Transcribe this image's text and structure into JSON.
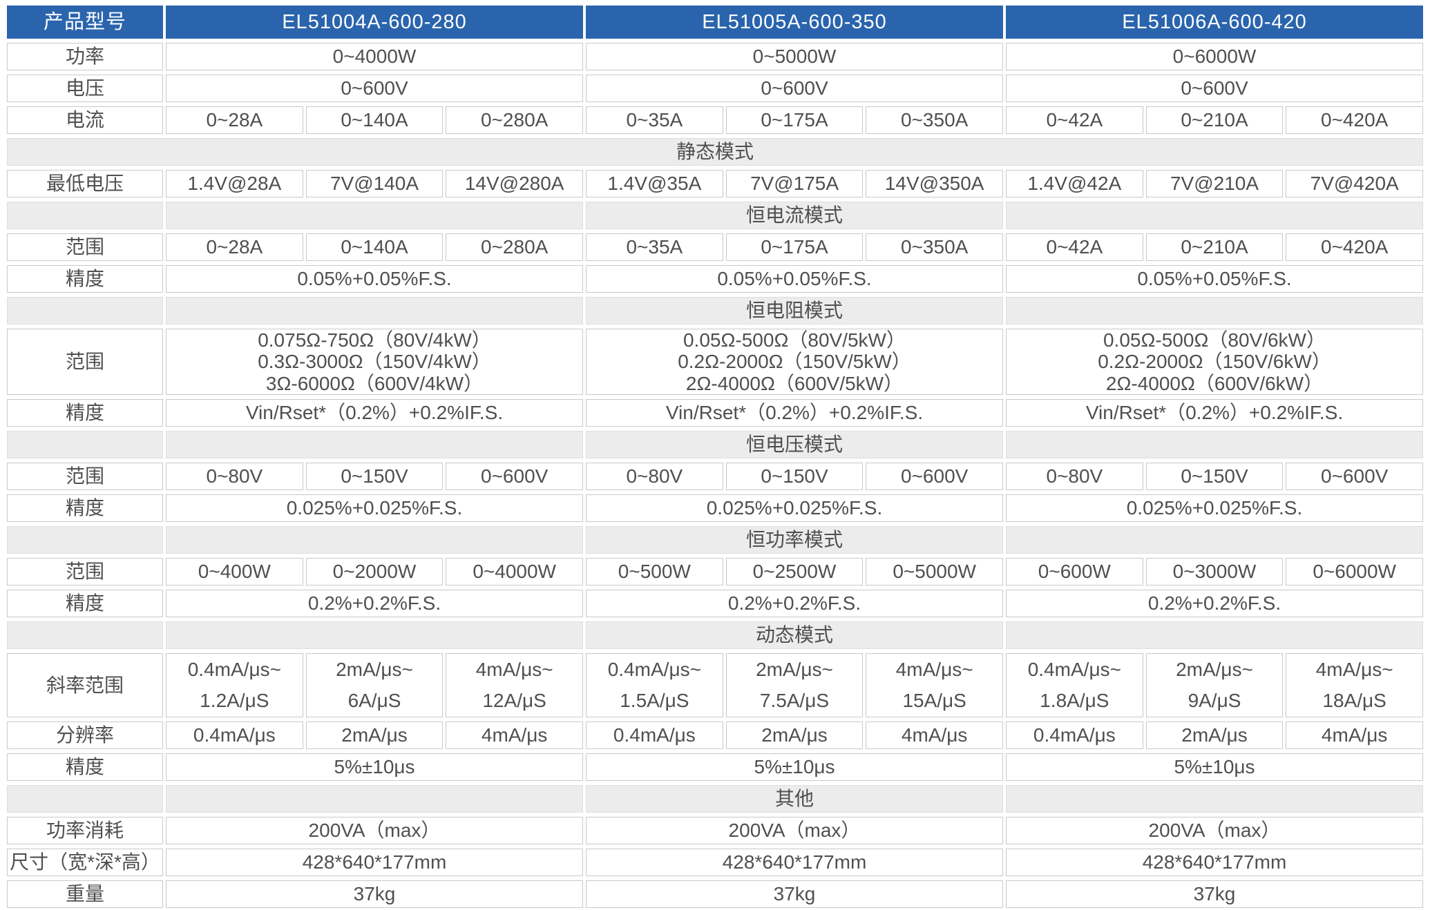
{
  "table": {
    "colors": {
      "header_bg": "#2a64ad",
      "header_text": "#ffffff",
      "band_bg": "#ececec",
      "border": "#c9c9c9",
      "text": "#4f4f52"
    },
    "header": {
      "label": "产品型号",
      "models": [
        "EL51004A-600-280",
        "EL51005A-600-350",
        "EL51006A-600-420"
      ]
    },
    "rows": [
      {
        "type": "group3",
        "label": "功率",
        "values": [
          "0~4000W",
          "0~5000W",
          "0~6000W"
        ]
      },
      {
        "type": "group3",
        "label": "电压",
        "values": [
          "0~600V",
          "0~600V",
          "0~600V"
        ]
      },
      {
        "type": "sub9",
        "label": "电流",
        "values": [
          [
            "0~28A",
            "0~140A",
            "0~280A"
          ],
          [
            "0~35A",
            "0~175A",
            "0~350A"
          ],
          [
            "0~42A",
            "0~210A",
            "0~420A"
          ]
        ]
      },
      {
        "type": "band",
        "full": true,
        "label": "静态模式"
      },
      {
        "type": "sub9",
        "label": "最低电压",
        "values": [
          [
            "1.4V@28A",
            "7V@140A",
            "14V@280A"
          ],
          [
            "1.4V@35A",
            "7V@175A",
            "14V@350A"
          ],
          [
            "1.4V@42A",
            "7V@210A",
            "7V@420A"
          ]
        ]
      },
      {
        "type": "band",
        "full": false,
        "label": "恒电流模式"
      },
      {
        "type": "sub9",
        "label": "范围",
        "values": [
          [
            "0~28A",
            "0~140A",
            "0~280A"
          ],
          [
            "0~35A",
            "0~175A",
            "0~350A"
          ],
          [
            "0~42A",
            "0~210A",
            "0~420A"
          ]
        ]
      },
      {
        "type": "group3",
        "label": "精度",
        "values": [
          "0.05%+0.05%F.S.",
          "0.05%+0.05%F.S.",
          "0.05%+0.05%F.S."
        ]
      },
      {
        "type": "band",
        "full": false,
        "label": "恒电阻模式"
      },
      {
        "type": "group3",
        "label": "范围",
        "multiline": true,
        "row_class": "tall-3",
        "values": [
          [
            "0.075Ω-750Ω（80V/4kW）",
            "0.3Ω-3000Ω（150V/4kW）",
            "3Ω-6000Ω（600V/4kW）"
          ],
          [
            "0.05Ω-500Ω（80V/5kW）",
            "0.2Ω-2000Ω（150V/5kW）",
            "2Ω-4000Ω（600V/5kW）"
          ],
          [
            "0.05Ω-500Ω（80V/6kW）",
            "0.2Ω-2000Ω（150V/6kW）",
            "2Ω-4000Ω（600V/6kW）"
          ]
        ]
      },
      {
        "type": "group3",
        "label": "精度",
        "values": [
          "Vin/Rset*（0.2%）+0.2%IF.S.",
          "Vin/Rset*（0.2%）+0.2%IF.S.",
          "Vin/Rset*（0.2%）+0.2%IF.S."
        ]
      },
      {
        "type": "band",
        "full": false,
        "label": "恒电压模式"
      },
      {
        "type": "sub9",
        "label": "范围",
        "values": [
          [
            "0~80V",
            "0~150V",
            "0~600V"
          ],
          [
            "0~80V",
            "0~150V",
            "0~600V"
          ],
          [
            "0~80V",
            "0~150V",
            "0~600V"
          ]
        ]
      },
      {
        "type": "group3",
        "label": "精度",
        "values": [
          "0.025%+0.025%F.S.",
          "0.025%+0.025%F.S.",
          "0.025%+0.025%F.S."
        ]
      },
      {
        "type": "band",
        "full": false,
        "label": "恒功率模式"
      },
      {
        "type": "sub9",
        "label": "范围",
        "values": [
          [
            "0~400W",
            "0~2000W",
            "0~4000W"
          ],
          [
            "0~500W",
            "0~2500W",
            "0~5000W"
          ],
          [
            "0~600W",
            "0~3000W",
            "0~6000W"
          ]
        ]
      },
      {
        "type": "group3",
        "label": "精度",
        "values": [
          "0.2%+0.2%F.S.",
          "0.2%+0.2%F.S.",
          "0.2%+0.2%F.S."
        ]
      },
      {
        "type": "band",
        "full": false,
        "label": "动态模式"
      },
      {
        "type": "sub9",
        "label": "斜率范围",
        "multiline": true,
        "row_class": "tall-2",
        "values": [
          [
            [
              "0.4mA/μs~",
              "1.2A/μS"
            ],
            [
              "2mA/μs~",
              "6A/μS"
            ],
            [
              "4mA/μs~",
              "12A/μS"
            ]
          ],
          [
            [
              "0.4mA/μs~",
              "1.5A/μS"
            ],
            [
              "2mA/μs~",
              "7.5A/μS"
            ],
            [
              "4mA/μs~",
              "15A/μS"
            ]
          ],
          [
            [
              "0.4mA/μs~",
              "1.8A/μS"
            ],
            [
              "2mA/μs~",
              "9A/μS"
            ],
            [
              "4mA/μs~",
              "18A/μS"
            ]
          ]
        ]
      },
      {
        "type": "sub9",
        "label": "分辨率",
        "values": [
          [
            "0.4mA/μs",
            "2mA/μs",
            "4mA/μs"
          ],
          [
            "0.4mA/μs",
            "2mA/μs",
            "4mA/μs"
          ],
          [
            "0.4mA/μs",
            "2mA/μs",
            "4mA/μs"
          ]
        ]
      },
      {
        "type": "group3",
        "label": "精度",
        "values": [
          "5%±10μs",
          "5%±10μs",
          "5%±10μs"
        ]
      },
      {
        "type": "band",
        "full": false,
        "label": "其他"
      },
      {
        "type": "group3",
        "label": "功率消耗",
        "values": [
          "200VA（max）",
          "200VA（max）",
          "200VA（max）"
        ]
      },
      {
        "type": "group3",
        "label": "尺寸（宽*深*高）",
        "values": [
          "428*640*177mm",
          "428*640*177mm",
          "428*640*177mm"
        ]
      },
      {
        "type": "group3",
        "label": "重量",
        "values": [
          "37kg",
          "37kg",
          "37kg"
        ]
      }
    ]
  }
}
